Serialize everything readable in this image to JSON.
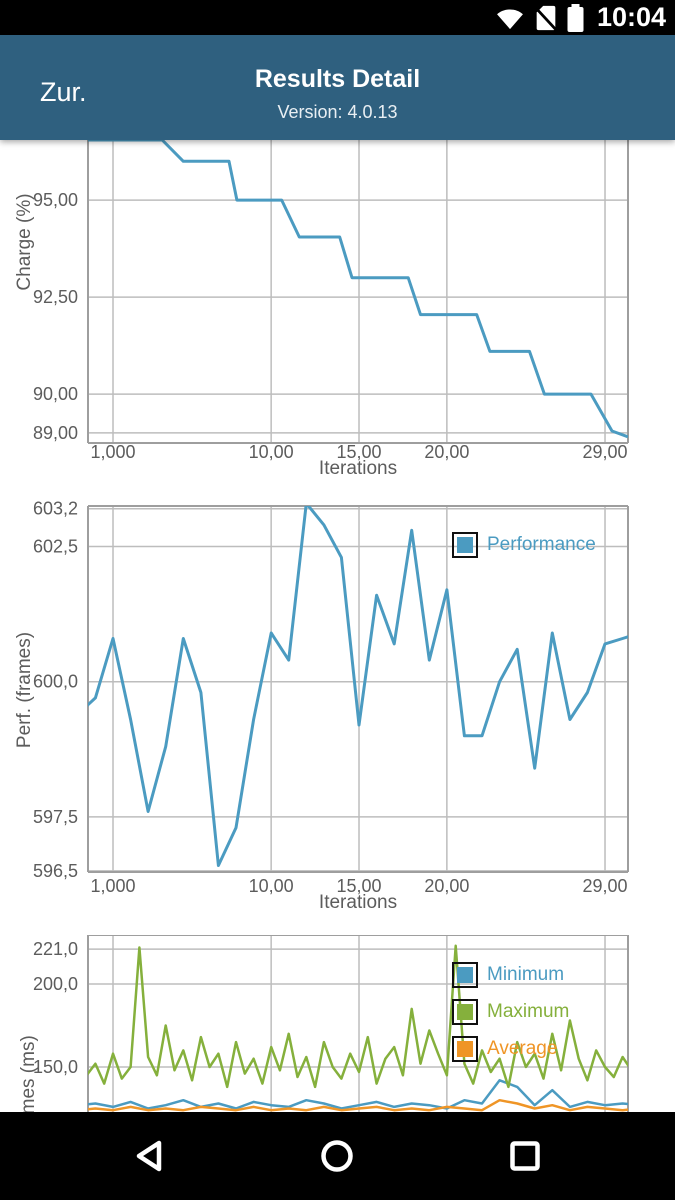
{
  "status_bar": {
    "time": "10:04",
    "icons": [
      "wifi-icon",
      "no-sim-icon",
      "battery-icon"
    ]
  },
  "app_bar": {
    "back_label": "Zur.",
    "title": "Results Detail",
    "subtitle": "Version: 4.0.13"
  },
  "nav_bar": {
    "icons": [
      "back-icon",
      "home-icon",
      "recents-icon"
    ]
  },
  "colors": {
    "status_bar_bg": "#000000",
    "app_bar_bg": "#2f607f",
    "nav_bar_bg": "#000000",
    "series_blue": "#4b9bc1",
    "series_green": "#85b03c",
    "series_orange": "#ef9526",
    "grid": "#bdbdbd",
    "plot_border": "#9e9e9e",
    "axis_text": "#5c5c5c"
  },
  "chart_data": [
    {
      "type": "line",
      "title": "",
      "ylabel": "Charge (%)",
      "xlabel": "Iterations",
      "xlim": [
        -423,
        30308
      ],
      "ylim": [
        88.74,
        96.55
      ],
      "grid": true,
      "legend": [],
      "xticks": [
        {
          "v": 1000,
          "label": "1,000"
        },
        {
          "v": 10000,
          "label": "10,00"
        },
        {
          "v": 15000,
          "label": "15,00"
        },
        {
          "v": 20000,
          "label": "20,00"
        },
        {
          "v": 29000,
          "label": "29,00"
        }
      ],
      "yticks": [
        {
          "v": 95.0,
          "label": "95,00"
        },
        {
          "v": 92.5,
          "label": "92,50"
        },
        {
          "v": 90.0,
          "label": "90,00"
        },
        {
          "v": 89.0,
          "label": "89,00"
        }
      ],
      "series": [
        {
          "name": "Charge",
          "color": "series_blue",
          "points": [
            [
              -423,
              96.55
            ],
            [
              3800,
              96.55
            ],
            [
              5000,
              96.0
            ],
            [
              7600,
              96.0
            ],
            [
              8050,
              95.0
            ],
            [
              10600,
              95.0
            ],
            [
              11600,
              94.05
            ],
            [
              13900,
              94.05
            ],
            [
              14600,
              93.0
            ],
            [
              17800,
              93.0
            ],
            [
              18500,
              92.05
            ],
            [
              21700,
              92.05
            ],
            [
              22450,
              91.1
            ],
            [
              24700,
              91.1
            ],
            [
              25550,
              90.0
            ],
            [
              28200,
              90.0
            ],
            [
              29400,
              89.05
            ],
            [
              30308,
              88.9
            ]
          ]
        }
      ]
    },
    {
      "type": "line",
      "title": "",
      "ylabel": "Perf. (frames)",
      "xlabel": "Iterations",
      "xlim": [
        -423,
        30308
      ],
      "ylim": [
        596.48,
        603.25
      ],
      "grid": true,
      "legend": [
        {
          "label": "Performance",
          "color": "series_blue"
        }
      ],
      "xticks": [
        {
          "v": 1000,
          "label": "1,000"
        },
        {
          "v": 10000,
          "label": "10,00"
        },
        {
          "v": 15000,
          "label": "15,00"
        },
        {
          "v": 20000,
          "label": "20,00"
        },
        {
          "v": 29000,
          "label": "29,00"
        }
      ],
      "yticks": [
        {
          "v": 603.2,
          "label": "603,2"
        },
        {
          "v": 602.5,
          "label": "602,5"
        },
        {
          "v": 600.0,
          "label": "600,0"
        },
        {
          "v": 597.5,
          "label": "597,5"
        },
        {
          "v": 596.5,
          "label": "596,5"
        }
      ],
      "series": [
        {
          "name": "Performance",
          "color": "series_blue",
          "x0": -1000,
          "dx": 1000,
          "values": [
            599.4,
            599.7,
            600.8,
            599.3,
            597.6,
            598.8,
            600.8,
            599.8,
            596.6,
            597.3,
            599.3,
            600.9,
            600.4,
            603.3,
            602.9,
            602.3,
            599.2,
            601.6,
            600.7,
            602.8,
            600.4,
            601.7,
            599.0,
            599.0,
            600.0,
            600.6,
            598.4,
            600.9,
            599.3,
            599.8,
            600.7,
            600.8,
            600.9
          ]
        }
      ]
    },
    {
      "type": "line",
      "title": "",
      "ylabel": "Frametimes (ms)",
      "xlim": [
        -423,
        30308
      ],
      "ylim": [
        122.9,
        229.5
      ],
      "grid": true,
      "legend": [
        {
          "label": "Minimum",
          "color": "series_blue"
        },
        {
          "label": "Maximum",
          "color": "series_green"
        },
        {
          "label": "Average",
          "color": "series_orange"
        }
      ],
      "xticks": [
        {
          "v": 1000,
          "label": ""
        },
        {
          "v": 10000,
          "label": ""
        },
        {
          "v": 15000,
          "label": ""
        },
        {
          "v": 20000,
          "label": ""
        },
        {
          "v": 29000,
          "label": ""
        }
      ],
      "yticks": [
        {
          "v": 221.0,
          "label": "221,0"
        },
        {
          "v": 200.0,
          "label": "200,0"
        },
        {
          "v": 150.0,
          "label": "150,0"
        }
      ],
      "series": [
        {
          "name": "Minimum",
          "color": "series_blue",
          "x0": -1000,
          "dx": 1000,
          "values": [
            127,
            128,
            126,
            129,
            125,
            127,
            130,
            126,
            128,
            125,
            129,
            127,
            126,
            130,
            128,
            125,
            127,
            129,
            126,
            128,
            127,
            125,
            130,
            128,
            142,
            138,
            127,
            136,
            126,
            129,
            127,
            128,
            127
          ]
        },
        {
          "name": "Maximum",
          "color": "series_green",
          "x0": -500,
          "dx": 500,
          "values": [
            145,
            152,
            140,
            158,
            143,
            150,
            222,
            156,
            145,
            175,
            148,
            160,
            142,
            168,
            150,
            158,
            138,
            165,
            146,
            155,
            140,
            162,
            148,
            170,
            144,
            156,
            138,
            165,
            150,
            143,
            158,
            147,
            168,
            140,
            155,
            162,
            145,
            185,
            152,
            172,
            158,
            145,
            223,
            152,
            140,
            160,
            147,
            155,
            138,
            165,
            150,
            158,
            143,
            170,
            148,
            178,
            155,
            142,
            160,
            150,
            144,
            156,
            148
          ]
        },
        {
          "name": "Average",
          "color": "series_orange",
          "x0": -1000,
          "dx": 1000,
          "values": [
            124,
            125,
            124,
            126,
            124,
            125,
            124,
            126,
            125,
            124,
            126,
            124,
            125,
            124,
            126,
            124,
            125,
            126,
            124,
            125,
            124,
            126,
            125,
            124,
            130,
            128,
            125,
            127,
            124,
            126,
            125,
            124,
            125
          ]
        }
      ]
    }
  ]
}
